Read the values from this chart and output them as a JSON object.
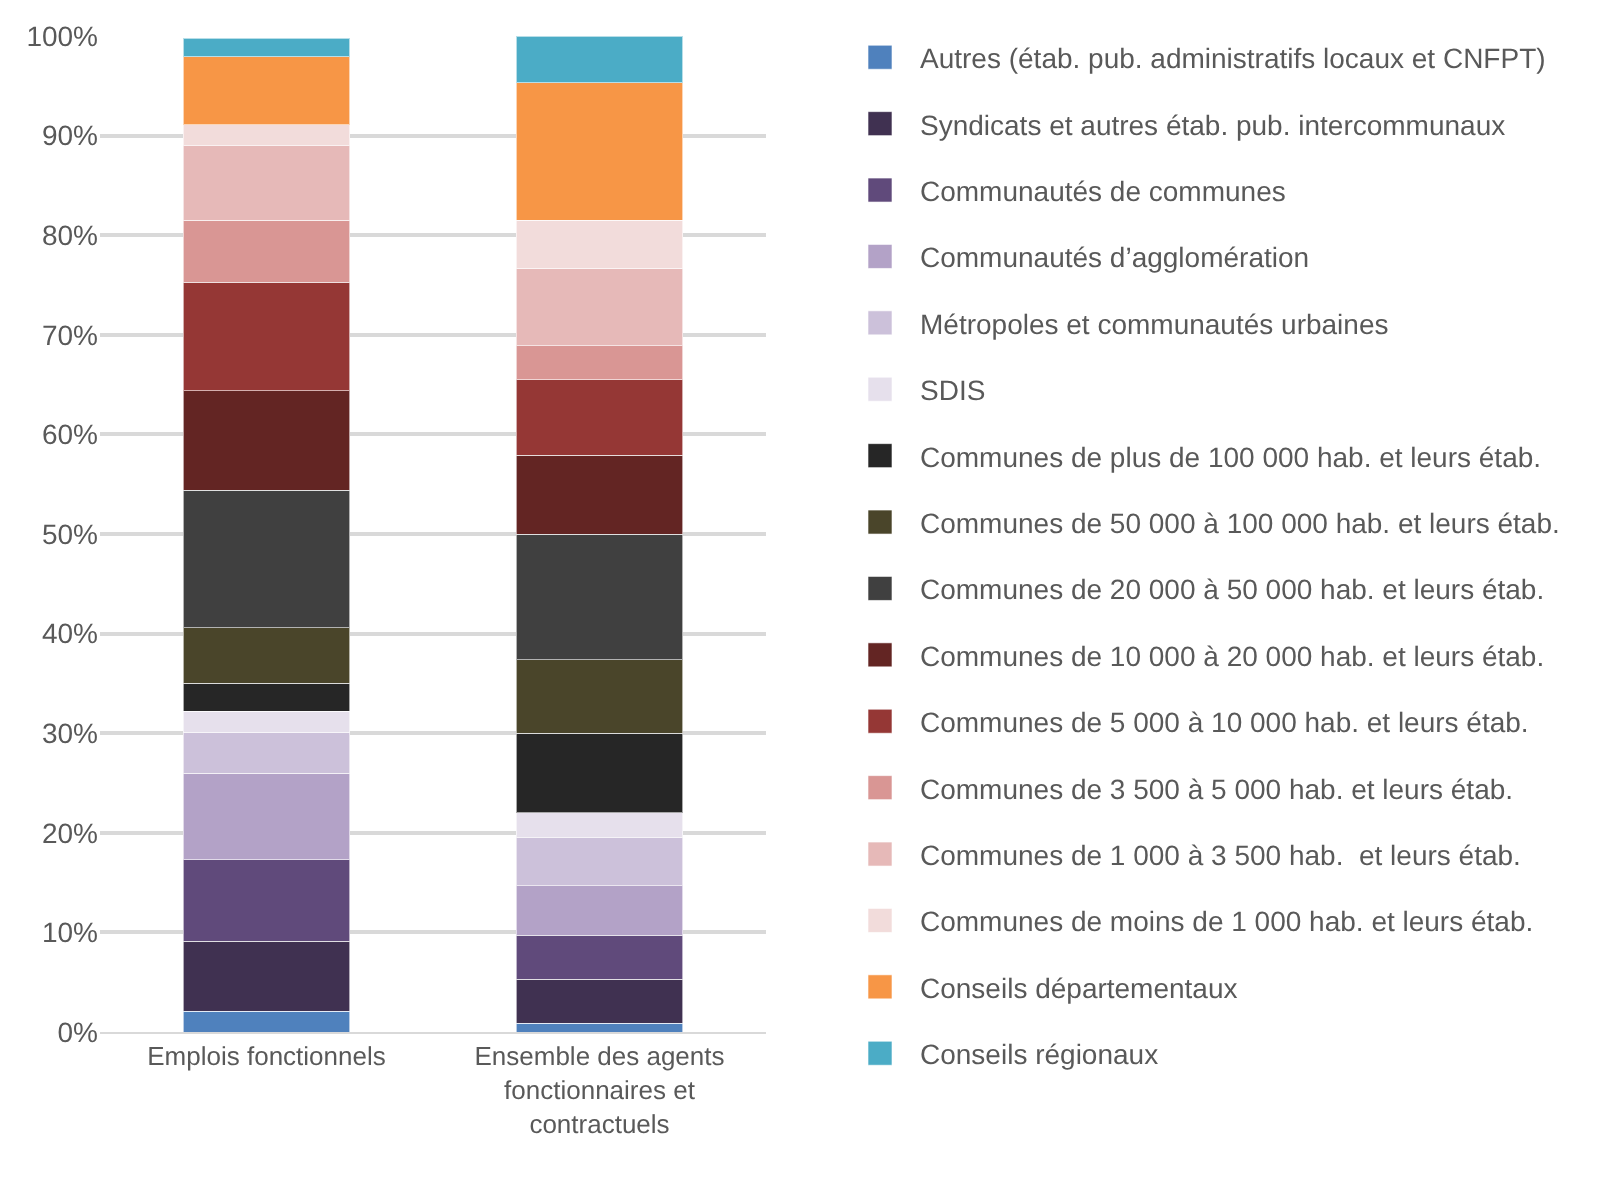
{
  "chart_data": {
    "type": "bar",
    "stacked": true,
    "categories": [
      "Emplois fonctionnels",
      "Ensemble des agents fonctionnaires et contractuels"
    ],
    "series": [
      {
        "name": "Autres (étab. pub. administratifs locaux et CNFPT)",
        "color": "#4f81bd",
        "values": [
          2.1,
          0.9
        ]
      },
      {
        "name": "Syndicats et autres étab. pub. intercommunaux",
        "color": "#403151",
        "values": [
          7.0,
          4.4
        ]
      },
      {
        "name": "Communautés de communes",
        "color": "#604a7b",
        "values": [
          8.2,
          4.4
        ]
      },
      {
        "name": "Communautés d’agglomération",
        "color": "#b3a2c7",
        "values": [
          8.7,
          5.0
        ]
      },
      {
        "name": "Métropoles et communautés urbaines",
        "color": "#ccc1da",
        "values": [
          4.1,
          4.8
        ]
      },
      {
        "name": "SDIS",
        "color": "#e6e0ec",
        "values": [
          2.1,
          2.5
        ]
      },
      {
        "name": "Communes de plus de 100 000 hab. et leurs étab.",
        "color": "#262626",
        "values": [
          2.8,
          8.0
        ]
      },
      {
        "name": "Communes de 50 000 à 100 000 hab. et leurs étab.",
        "color": "#4a452a",
        "values": [
          5.6,
          7.4
        ]
      },
      {
        "name": "Communes de 20 000 à 50 000 hab. et leurs étab.",
        "color": "#404040",
        "values": [
          13.8,
          12.6
        ]
      },
      {
        "name": "Communes de 10 000 à 20 000 hab. et leurs étab.",
        "color": "#632523",
        "values": [
          10.0,
          7.9
        ]
      },
      {
        "name": "Communes de 5 000 à 10 000 hab. et leurs étab.",
        "color": "#953735",
        "values": [
          10.9,
          7.6
        ]
      },
      {
        "name": "Communes de 3 500 à 5 000 hab. et leurs étab.",
        "color": "#d99694",
        "values": [
          6.2,
          3.4
        ]
      },
      {
        "name": "Communes de 1 000 à 3 500 hab.  et leurs étab.",
        "color": "#e6b9b8",
        "values": [
          7.5,
          7.8
        ]
      },
      {
        "name": "Communes de moins de 1 000 hab. et leurs étab.",
        "color": "#f2dcdb",
        "values": [
          2.1,
          4.8
        ]
      },
      {
        "name": "Conseils départementaux",
        "color": "#f79646",
        "values": [
          6.8,
          13.8
        ]
      },
      {
        "name": "Conseils régionaux",
        "color": "#4bacc6",
        "values": [
          1.9,
          4.7
        ]
      }
    ],
    "ylim": [
      0,
      100
    ],
    "yticks": [
      {
        "value": 0,
        "label": "0%"
      },
      {
        "value": 10,
        "label": "10%"
      },
      {
        "value": 20,
        "label": "20%"
      },
      {
        "value": 30,
        "label": "30%"
      },
      {
        "value": 40,
        "label": "40%"
      },
      {
        "value": 50,
        "label": "50%"
      },
      {
        "value": 60,
        "label": "60%"
      },
      {
        "value": 70,
        "label": "70%"
      },
      {
        "value": 80,
        "label": "80%"
      },
      {
        "value": 90,
        "label": "90%"
      },
      {
        "value": 100,
        "label": "100%"
      }
    ],
    "grid": "y",
    "legend": "right"
  }
}
